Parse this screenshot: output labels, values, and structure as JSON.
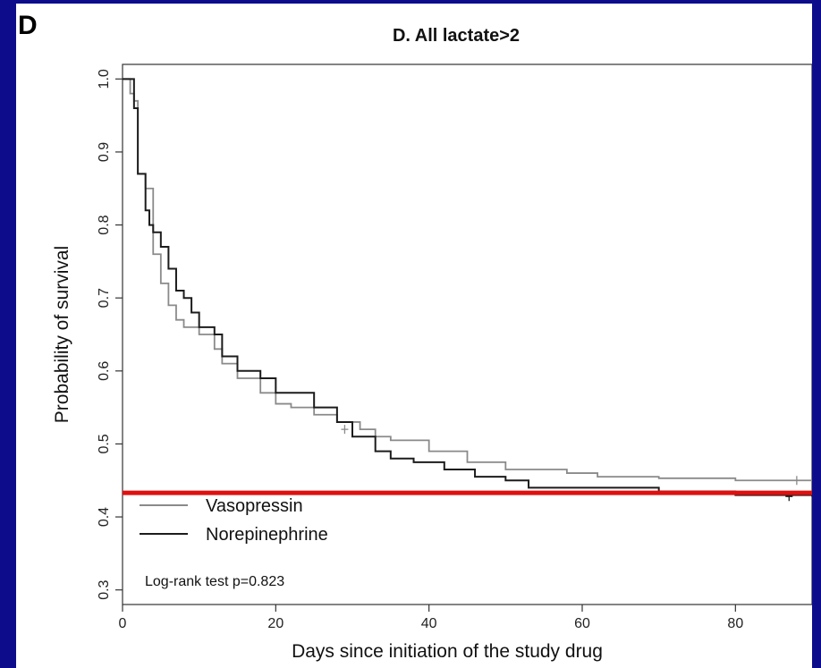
{
  "panel_letter": "D",
  "chart_data": {
    "type": "line",
    "title": "D. All lactate>2",
    "xlabel": "Days since initiation of the study drug",
    "ylabel": "Probability of survival",
    "xlim": [
      0,
      90
    ],
    "ylim": [
      0.28,
      1.02
    ],
    "xticks": [
      0,
      20,
      40,
      60,
      80
    ],
    "yticks": [
      0.3,
      0.4,
      0.5,
      0.6,
      0.7,
      0.8,
      0.9,
      1.0
    ],
    "xtick_labels": [
      "0",
      "20",
      "40",
      "60",
      "80"
    ],
    "ytick_labels": [
      "0.3",
      "0.4",
      "0.5",
      "0.6",
      "0.7",
      "0.8",
      "0.9",
      "1.0"
    ],
    "grid": false,
    "legend_position": "bottom-left",
    "annotation": "Log-rank test p=0.823",
    "reference_line": {
      "y": 0.433,
      "color": "#e01010"
    },
    "series": [
      {
        "name": "Vasopressin",
        "color": "#8a8a8a",
        "step": true,
        "x": [
          0,
          1,
          1.5,
          2,
          3,
          4,
          5,
          6,
          7,
          8,
          10,
          12,
          13,
          15,
          18,
          20,
          22,
          25,
          28,
          31,
          33,
          35,
          40,
          45,
          50,
          58,
          62,
          70,
          80,
          90
        ],
        "y": [
          1.0,
          0.98,
          0.97,
          0.87,
          0.85,
          0.76,
          0.72,
          0.69,
          0.67,
          0.66,
          0.65,
          0.63,
          0.61,
          0.59,
          0.57,
          0.555,
          0.55,
          0.54,
          0.53,
          0.52,
          0.51,
          0.505,
          0.49,
          0.475,
          0.465,
          0.46,
          0.455,
          0.453,
          0.45,
          0.45
        ],
        "censor_marks": [
          [
            29,
            0.52
          ],
          [
            88,
            0.45
          ]
        ]
      },
      {
        "name": "Norepinephrine",
        "color": "#1c1c1c",
        "step": true,
        "x": [
          0,
          1.5,
          2,
          3,
          3.5,
          4,
          5,
          6,
          7,
          8,
          9,
          10,
          12,
          13,
          15,
          18,
          20,
          25,
          28,
          30,
          33,
          35,
          38,
          42,
          46,
          50,
          53,
          60,
          70,
          80,
          90
        ],
        "y": [
          1.0,
          0.96,
          0.87,
          0.82,
          0.8,
          0.79,
          0.77,
          0.74,
          0.71,
          0.7,
          0.68,
          0.66,
          0.65,
          0.62,
          0.6,
          0.59,
          0.57,
          0.55,
          0.53,
          0.51,
          0.49,
          0.48,
          0.475,
          0.465,
          0.455,
          0.45,
          0.44,
          0.44,
          0.435,
          0.43,
          0.428
        ],
        "censor_marks": [
          [
            87,
            0.428
          ]
        ]
      }
    ]
  }
}
